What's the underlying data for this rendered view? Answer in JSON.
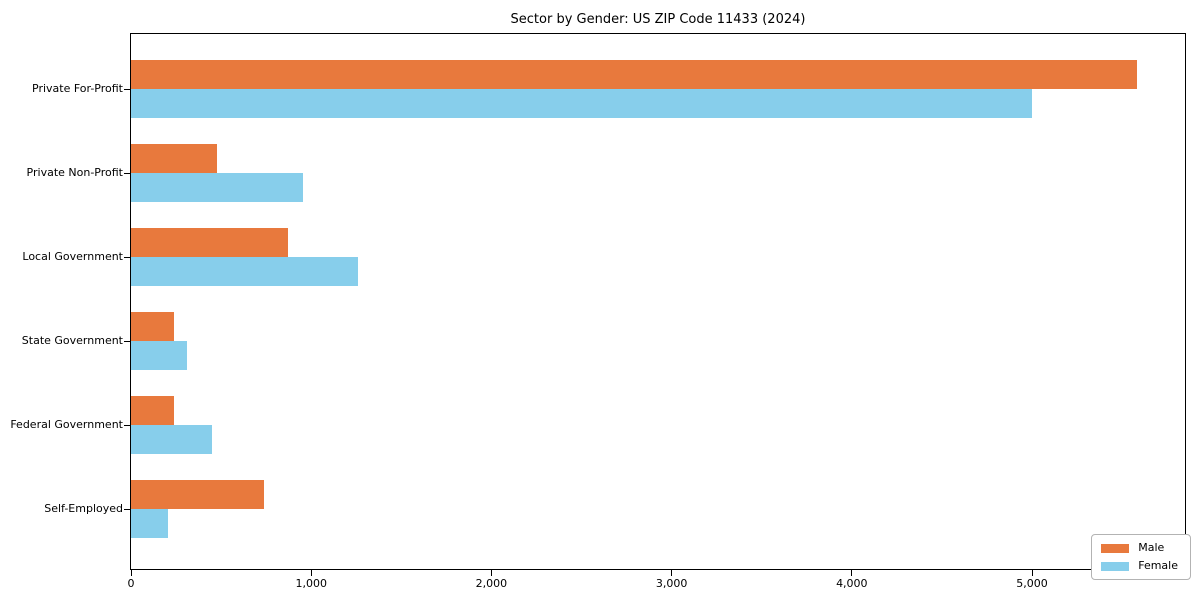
{
  "chart_data": {
    "type": "bar",
    "orientation": "horizontal",
    "title": "Sector by Gender: US ZIP Code 11433 (2024)",
    "xlabel": "",
    "ylabel": "",
    "categories": [
      "Private For-Profit",
      "Private Non-Profit",
      "Local Government",
      "State Government",
      "Federal Government",
      "Self-Employed"
    ],
    "series": [
      {
        "name": "Male",
        "color": "#E8793D",
        "values": [
          5580,
          480,
          870,
          240,
          240,
          740
        ]
      },
      {
        "name": "Female",
        "color": "#87CEEB",
        "values": [
          5000,
          955,
          1260,
          310,
          450,
          205
        ]
      }
    ],
    "xlim": [
      0,
      5860
    ],
    "xticks": [
      0,
      1000,
      2000,
      3000,
      4000,
      5000
    ],
    "xtick_labels": [
      "0",
      "1,000",
      "2,000",
      "3,000",
      "4,000",
      "5,000"
    ],
    "grid": false,
    "legend": {
      "position": "lower right",
      "entries": [
        "Male",
        "Female"
      ]
    }
  }
}
